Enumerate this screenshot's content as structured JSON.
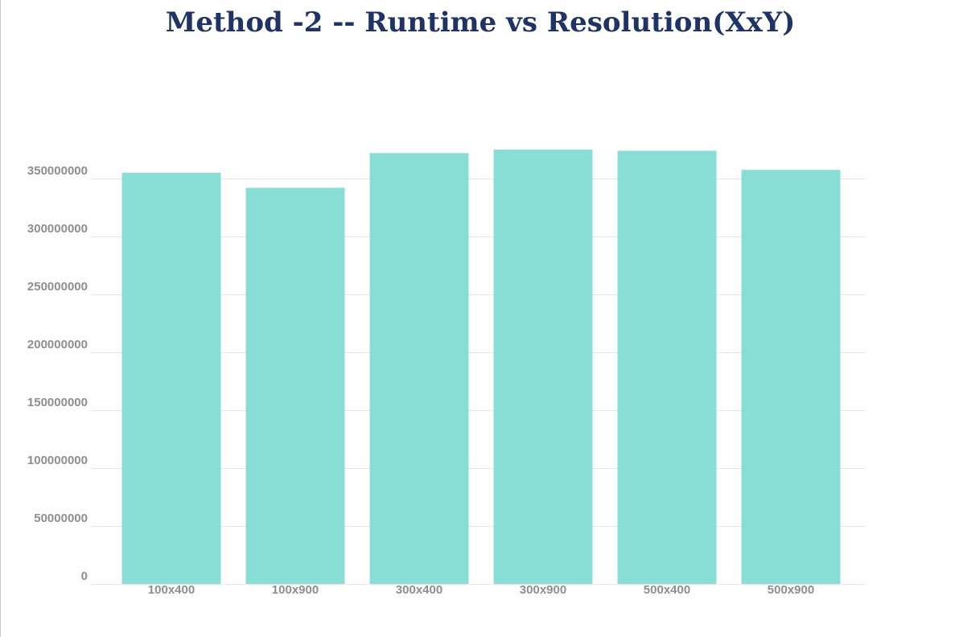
{
  "chart_data": {
    "type": "bar",
    "title": "Method -2 -- Runtime vs Resolution(XxY)",
    "categories": [
      "100x400",
      "100x900",
      "300x400",
      "300x900",
      "500x400",
      "500x900"
    ],
    "values": [
      355000000,
      342000000,
      372000000,
      375000000,
      374000000,
      357500000
    ],
    "ylim": [
      0,
      350000000
    ],
    "yticks": [
      0,
      50000000,
      100000000,
      150000000,
      200000000,
      250000000,
      300000000,
      350000000
    ],
    "grid": true,
    "legend": "none",
    "colors": {
      "bar": "#88ded5",
      "title": "#1f3366",
      "tick_label": "#8b8e93",
      "grid": "#e4e6e8"
    }
  }
}
